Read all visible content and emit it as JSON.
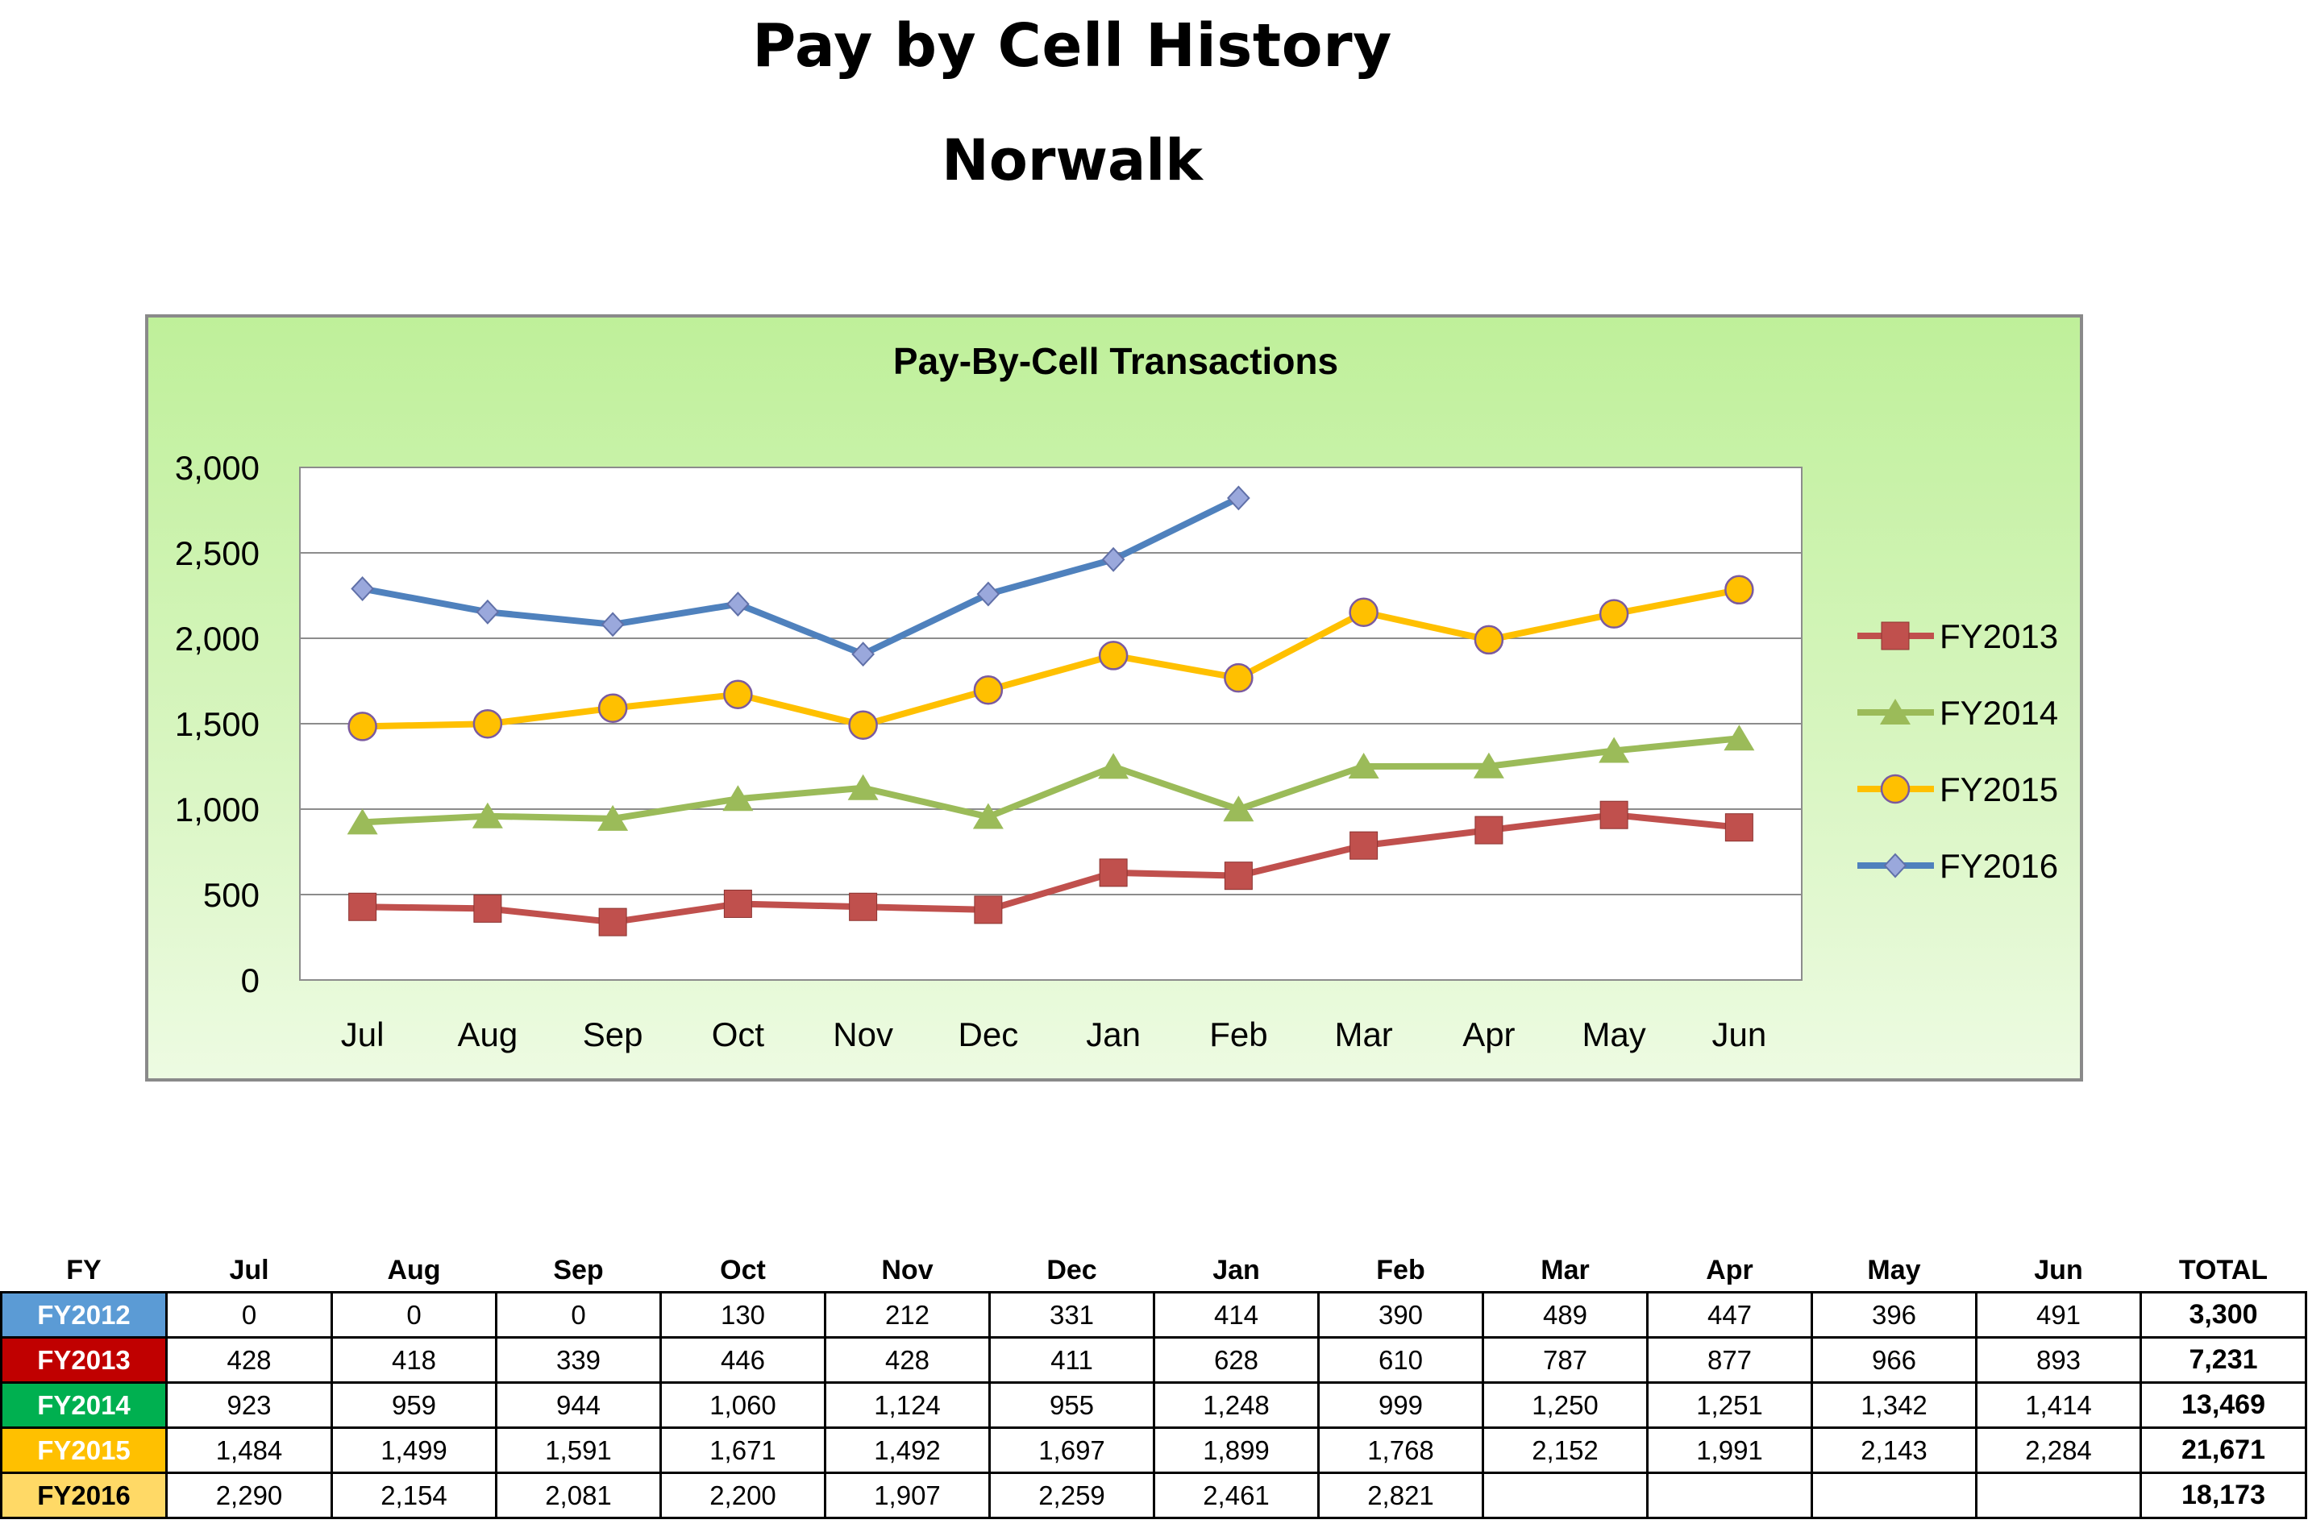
{
  "page": {
    "title": "Pay by Cell History",
    "subtitle": "Norwalk"
  },
  "chart_data": {
    "type": "line",
    "title": "Pay-By-Cell Transactions",
    "xlabel": "",
    "ylabel": "",
    "categories": [
      "Jul",
      "Aug",
      "Sep",
      "Oct",
      "Nov",
      "Dec",
      "Jan",
      "Feb",
      "Mar",
      "Apr",
      "May",
      "Jun"
    ],
    "ylim": [
      0,
      3000
    ],
    "yticks": [
      "0",
      "500",
      "1,000",
      "1,500",
      "2,000",
      "2,500",
      "3,000"
    ],
    "grid": true,
    "legend": "right",
    "series": [
      {
        "name": "FY2013",
        "color": "#c0504d",
        "marker": "square",
        "values": [
          428,
          418,
          339,
          446,
          428,
          411,
          628,
          610,
          787,
          877,
          966,
          893
        ]
      },
      {
        "name": "FY2014",
        "color": "#9bbb59",
        "marker": "triangle",
        "values": [
          923,
          959,
          944,
          1060,
          1124,
          955,
          1248,
          999,
          1250,
          1251,
          1342,
          1414
        ]
      },
      {
        "name": "FY2015",
        "color": "#ffc000",
        "marker": "circle",
        "values": [
          1484,
          1499,
          1591,
          1671,
          1492,
          1697,
          1899,
          1768,
          2152,
          1991,
          2143,
          2284
        ]
      },
      {
        "name": "FY2016",
        "color": "#4f81bd",
        "marker": "diamond",
        "values": [
          2290,
          2154,
          2081,
          2200,
          1907,
          2259,
          2461,
          2821,
          null,
          null,
          null,
          null
        ]
      }
    ]
  },
  "table": {
    "headers": [
      "FY",
      "Jul",
      "Aug",
      "Sep",
      "Oct",
      "Nov",
      "Dec",
      "Jan",
      "Feb",
      "Mar",
      "Apr",
      "May",
      "Jun",
      "TOTAL"
    ],
    "rows": [
      {
        "label": "FY2012",
        "color": "#5b9bd5",
        "cells": [
          "0",
          "0",
          "0",
          "130",
          "212",
          "331",
          "414",
          "390",
          "489",
          "447",
          "396",
          "491"
        ],
        "total": "3,300"
      },
      {
        "label": "FY2013",
        "color": "#c00000",
        "cells": [
          "428",
          "418",
          "339",
          "446",
          "428",
          "411",
          "628",
          "610",
          "787",
          "877",
          "966",
          "893"
        ],
        "total": "7,231"
      },
      {
        "label": "FY2014",
        "color": "#00b050",
        "cells": [
          "923",
          "959",
          "944",
          "1,060",
          "1,124",
          "955",
          "1,248",
          "999",
          "1,250",
          "1,251",
          "1,342",
          "1,414"
        ],
        "total": "13,469"
      },
      {
        "label": "FY2015",
        "color": "#ffc000",
        "cells": [
          "1,484",
          "1,499",
          "1,591",
          "1,671",
          "1,492",
          "1,697",
          "1,899",
          "1,768",
          "2,152",
          "1,991",
          "2,143",
          "2,284"
        ],
        "total": "21,671"
      },
      {
        "label": "FY2016",
        "color": "#ffd966",
        "cells": [
          "2,290",
          "2,154",
          "2,081",
          "2,200",
          "1,907",
          "2,259",
          "2,461",
          "2,821",
          "",
          "",
          "",
          ""
        ],
        "total": "18,173"
      }
    ]
  }
}
